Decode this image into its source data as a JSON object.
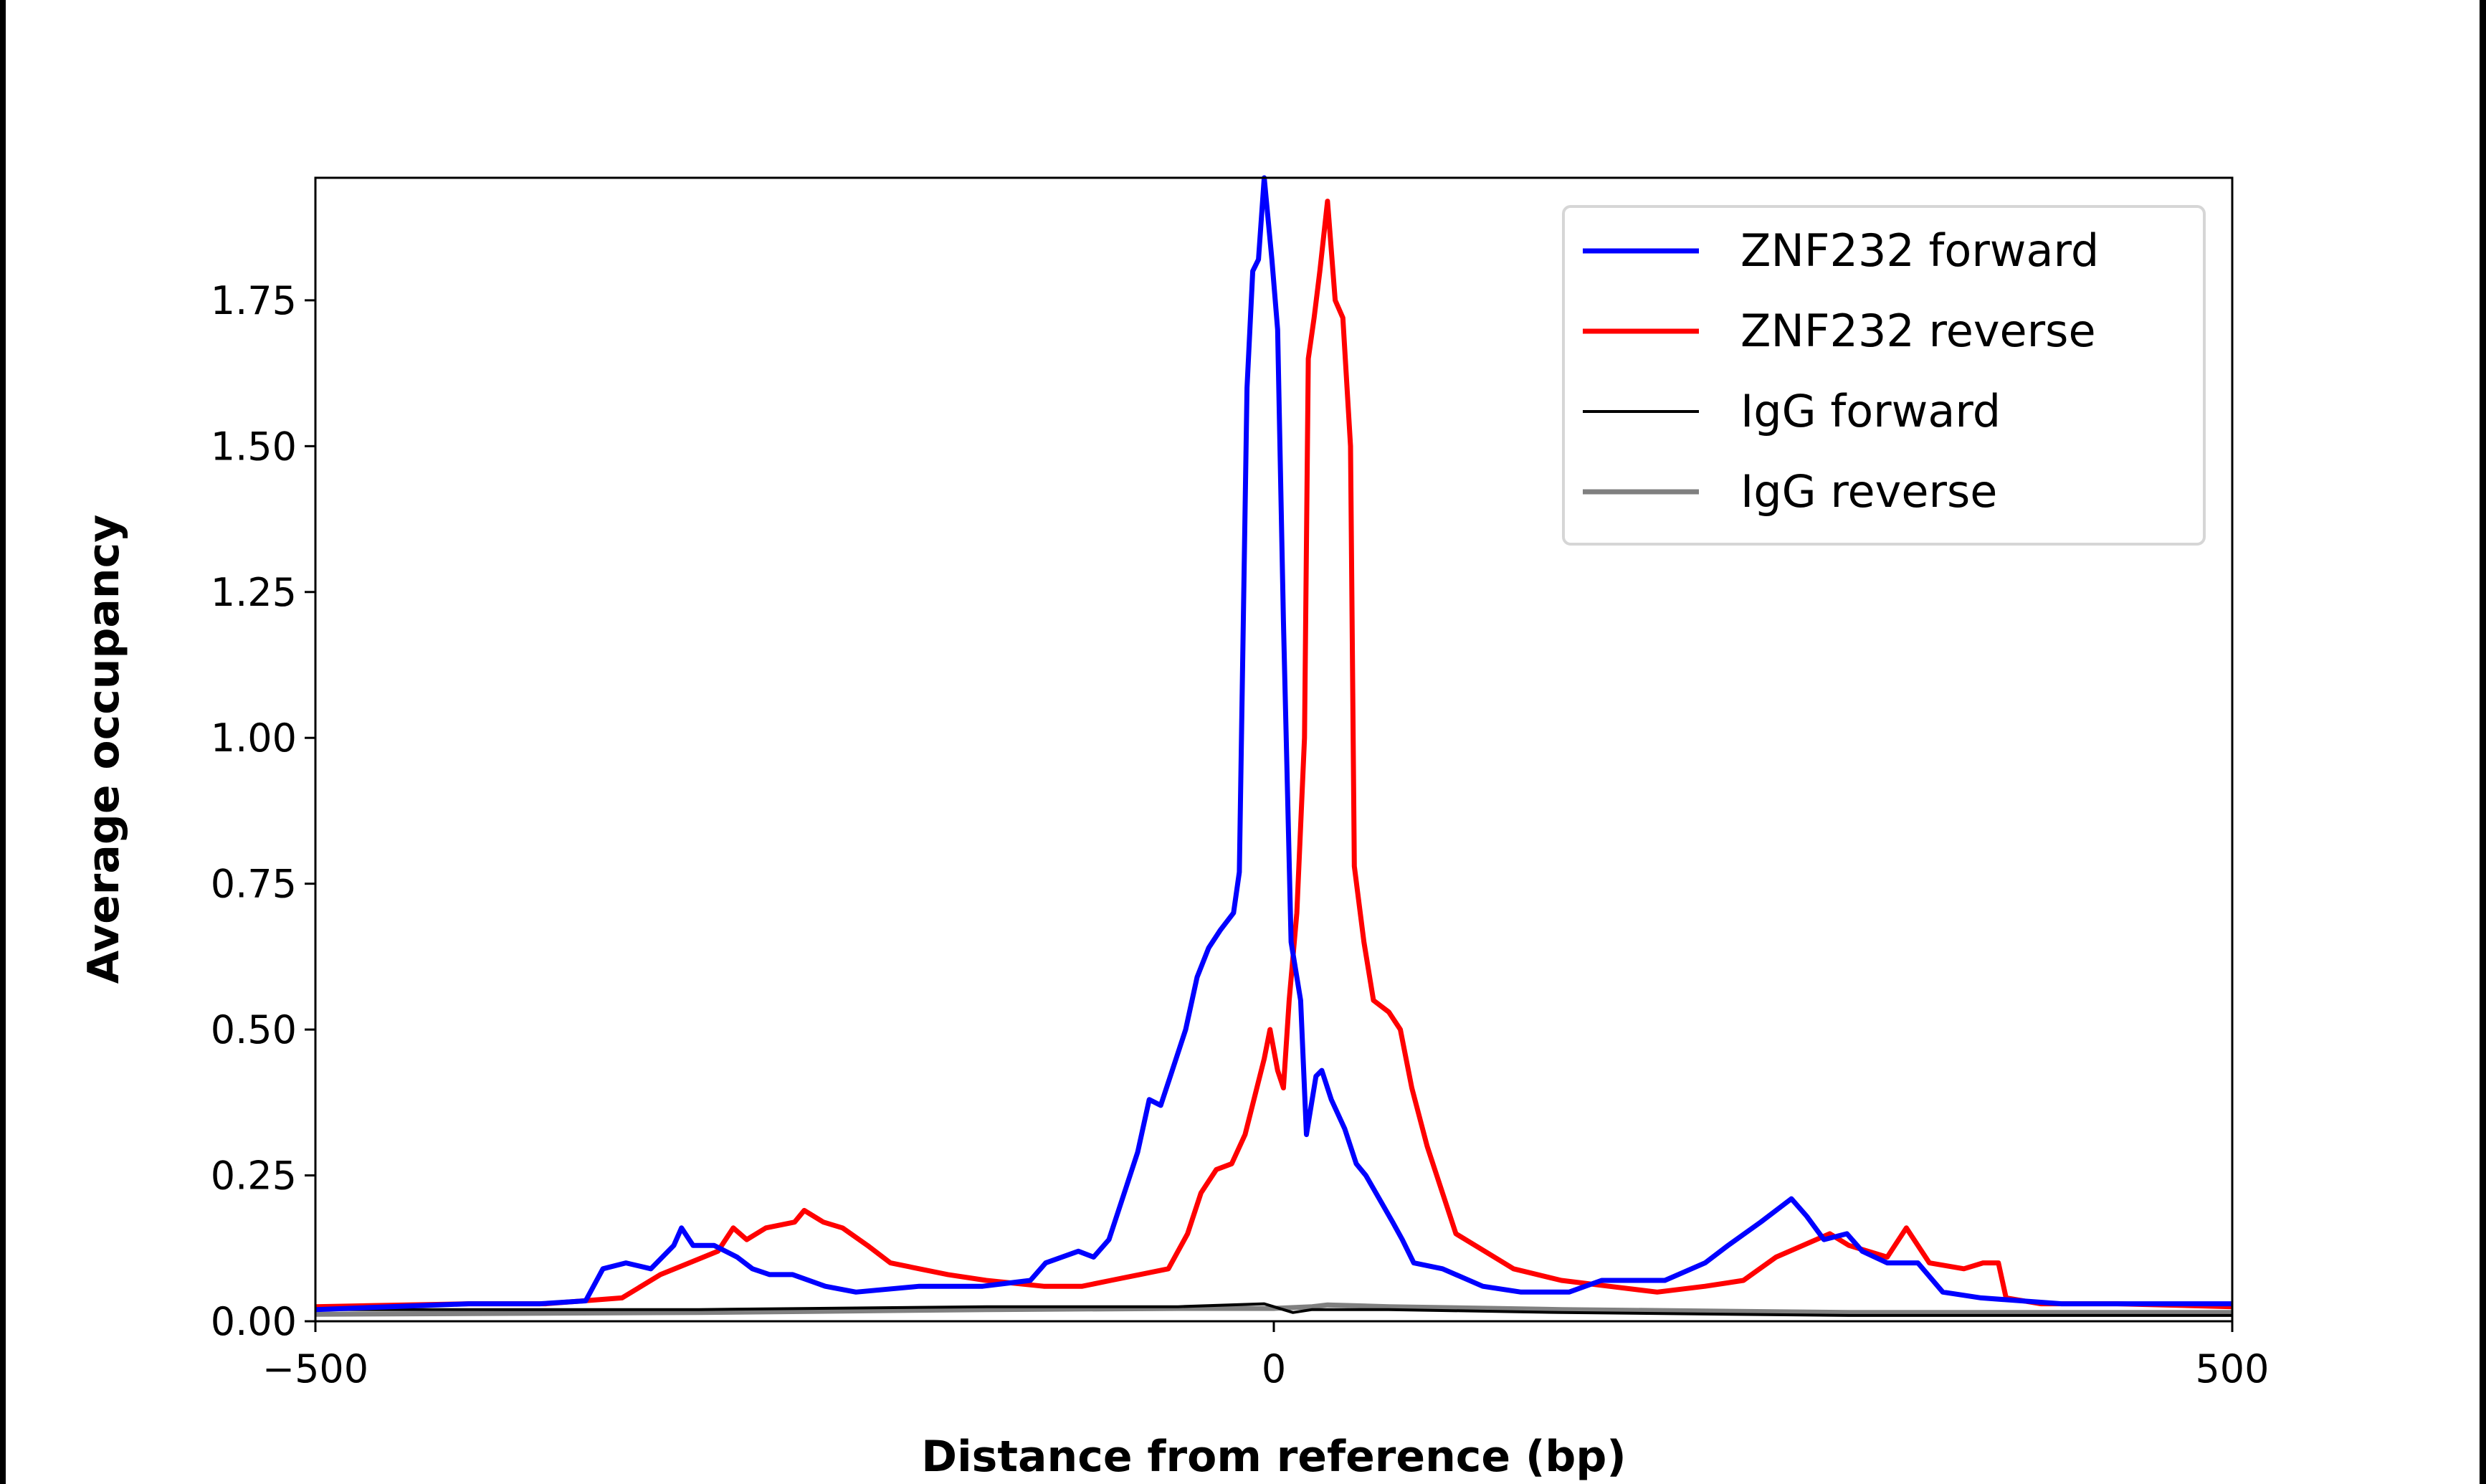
{
  "chart_data": {
    "type": "line",
    "title": "",
    "xlabel": "Distance from reference (bp)",
    "ylabel": "Average occupancy",
    "xlim": [
      -500,
      500
    ],
    "ylim": [
      0,
      1.96
    ],
    "xticks": [
      -500,
      0,
      500
    ],
    "xtick_labels": [
      "−500",
      "0",
      "500"
    ],
    "yticks": [
      0,
      0.25,
      0.5,
      0.75,
      1.0,
      1.25,
      1.5,
      1.75
    ],
    "ytick_labels": [
      "0.00",
      "0.25",
      "0.50",
      "0.75",
      "1.00",
      "1.25",
      "1.50",
      "1.75"
    ],
    "grid": false,
    "legend_placement": "upper right",
    "series": [
      {
        "name": "ZNF232 forward",
        "color": "#0000ff",
        "x": [
          -500,
          -420,
          -383,
          -359,
          -350,
          -338,
          -325,
          -313,
          -309,
          -303,
          -292,
          -280,
          -272,
          -263,
          -251,
          -234,
          -218,
          -185,
          -152,
          -127,
          -119,
          -102,
          -94,
          -86,
          -77,
          -71,
          -65,
          -59,
          -53,
          -46,
          -40,
          -34,
          -28,
          -21,
          -18,
          -14,
          -11,
          -8,
          -5,
          -1,
          2,
          5,
          9,
          14,
          17,
          22,
          25,
          30,
          37,
          43,
          48,
          55,
          62,
          67,
          73,
          88,
          109,
          129,
          154,
          171,
          204,
          225,
          237,
          254,
          270,
          278,
          287,
          299,
          307,
          320,
          336,
          349,
          369,
          411,
          473,
          500
        ],
        "y": [
          0.02,
          0.03,
          0.03,
          0.035,
          0.09,
          0.1,
          0.09,
          0.13,
          0.16,
          0.13,
          0.13,
          0.11,
          0.09,
          0.08,
          0.08,
          0.06,
          0.05,
          0.06,
          0.06,
          0.07,
          0.1,
          0.12,
          0.11,
          0.14,
          0.23,
          0.29,
          0.38,
          0.37,
          0.43,
          0.5,
          0.59,
          0.64,
          0.67,
          0.7,
          0.77,
          1.6,
          1.8,
          1.82,
          1.96,
          1.82,
          1.7,
          1.2,
          0.65,
          0.55,
          0.32,
          0.42,
          0.43,
          0.38,
          0.33,
          0.27,
          0.25,
          0.21,
          0.17,
          0.14,
          0.1,
          0.09,
          0.06,
          0.05,
          0.05,
          0.07,
          0.07,
          0.1,
          0.13,
          0.17,
          0.21,
          0.18,
          0.14,
          0.15,
          0.12,
          0.1,
          0.1,
          0.05,
          0.04,
          0.03,
          0.03,
          0.03
        ]
      },
      {
        "name": "ZNF232 reverse",
        "color": "#ff0000",
        "x": [
          -500,
          -420,
          -380,
          -340,
          -320,
          -305,
          -290,
          -282,
          -275,
          -265,
          -250,
          -245,
          -235,
          -225,
          -212,
          -200,
          -185,
          -170,
          -150,
          -120,
          -100,
          -85,
          -70,
          -55,
          -45,
          -38,
          -30,
          -22,
          -15,
          -5,
          -2,
          2,
          5,
          8,
          12,
          16,
          18,
          21,
          24,
          28,
          32,
          36,
          40,
          42,
          47,
          52,
          60,
          66,
          72,
          80,
          88,
          95,
          110,
          125,
          150,
          175,
          200,
          225,
          245,
          262,
          290,
          300,
          320,
          330,
          342,
          360,
          370,
          378,
          382,
          400,
          440,
          500
        ],
        "y": [
          0.025,
          0.03,
          0.03,
          0.04,
          0.08,
          0.1,
          0.12,
          0.16,
          0.14,
          0.16,
          0.17,
          0.19,
          0.17,
          0.16,
          0.13,
          0.1,
          0.09,
          0.08,
          0.07,
          0.06,
          0.06,
          0.07,
          0.08,
          0.09,
          0.15,
          0.22,
          0.26,
          0.27,
          0.32,
          0.45,
          0.5,
          0.43,
          0.4,
          0.55,
          0.7,
          1.0,
          1.65,
          1.72,
          1.8,
          1.92,
          1.75,
          1.72,
          1.5,
          0.78,
          0.65,
          0.55,
          0.53,
          0.5,
          0.4,
          0.3,
          0.22,
          0.15,
          0.12,
          0.09,
          0.07,
          0.06,
          0.05,
          0.06,
          0.07,
          0.11,
          0.15,
          0.13,
          0.11,
          0.16,
          0.1,
          0.09,
          0.1,
          0.1,
          0.04,
          0.03,
          0.03,
          0.025
        ]
      },
      {
        "name": "IgG forward",
        "color": "#000000",
        "x": [
          -500,
          -300,
          -150,
          -50,
          -5,
          0,
          10,
          20,
          60,
          150,
          300,
          500
        ],
        "y": [
          0.02,
          0.02,
          0.025,
          0.025,
          0.03,
          0.025,
          0.015,
          0.02,
          0.02,
          0.015,
          0.01,
          0.01
        ]
      },
      {
        "name": "IgG reverse",
        "color": "#808080",
        "x": [
          -500,
          -300,
          -150,
          -50,
          0,
          20,
          28,
          60,
          150,
          300,
          500
        ],
        "y": [
          0.012,
          0.015,
          0.02,
          0.022,
          0.022,
          0.025,
          0.028,
          0.025,
          0.02,
          0.015,
          0.015
        ]
      }
    ]
  }
}
